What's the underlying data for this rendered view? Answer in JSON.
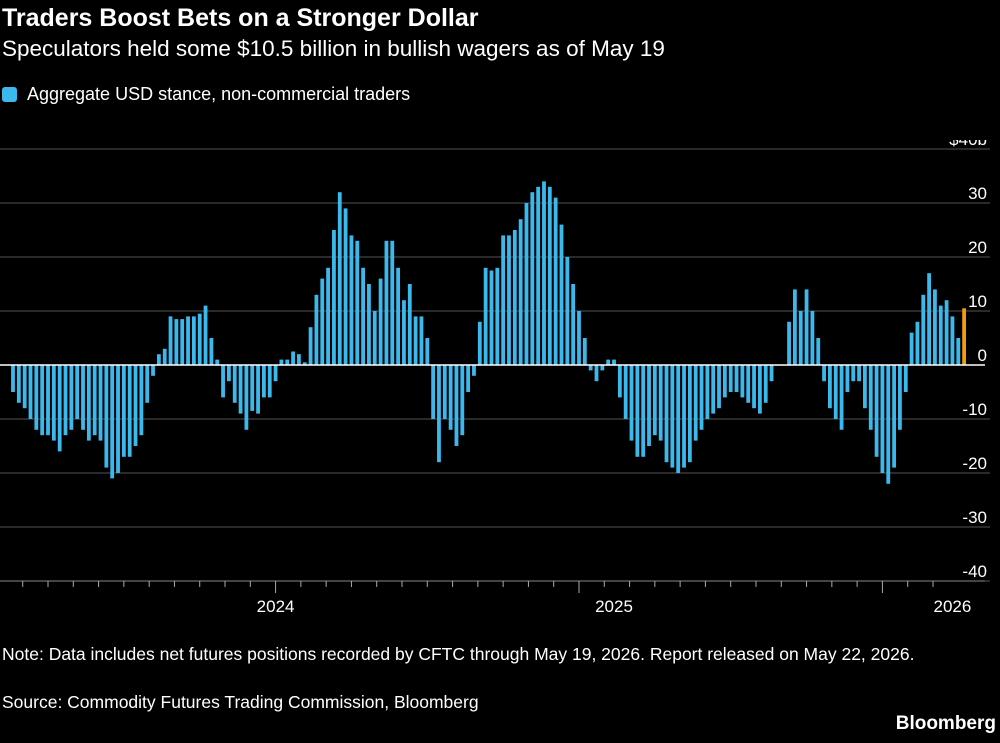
{
  "header": {
    "title": "Traders Boost Bets on a Stronger Dollar",
    "subtitle": "Speculators held some $10.5 billion in bullish wagers as of May 19"
  },
  "legend": {
    "label": "Aggregate USD stance, non-commercial traders",
    "color": "#3bb8ec"
  },
  "footer": {
    "note": "Note: Data includes net futures positions recorded by CFTC through May 19, 2026. Report released on May 22, 2026.",
    "source": "Source: Commodity Futures Trading Commission, Bloomberg",
    "brand": "Bloomberg"
  },
  "colors": {
    "bar": "#3bb8ec",
    "highlight": "#f39c12",
    "grid": "#555555",
    "zero_line": "#ffffff"
  },
  "chart_data": {
    "type": "bar",
    "series_name": "Aggregate USD stance, non-commercial traders",
    "unit": "$ billion",
    "ylim": [
      -40,
      40
    ],
    "yticks": [
      {
        "value": 40,
        "label": "$40b"
      },
      {
        "value": 30,
        "label": "30"
      },
      {
        "value": 20,
        "label": "20"
      },
      {
        "value": 10,
        "label": "10"
      },
      {
        "value": 0,
        "label": "0"
      },
      {
        "value": -10,
        "label": "-10"
      },
      {
        "value": -20,
        "label": "-20"
      },
      {
        "value": -30,
        "label": "-30"
      },
      {
        "value": -40,
        "label": "-40"
      }
    ],
    "xticks": [
      {
        "label": "2024",
        "index": 45
      },
      {
        "label": "2025",
        "index": 103
      },
      {
        "label": "2026",
        "index": 161
      }
    ],
    "x_start": "2023-06-06",
    "x_end": "2026-05-19",
    "frequency": "weekly",
    "highlight_last": true,
    "grid": true,
    "values": [
      -5,
      -7,
      -8,
      -10,
      -12,
      -13,
      -13,
      -14,
      -16,
      -13,
      -12,
      -10,
      -12,
      -14,
      -13,
      -14,
      -19,
      -21,
      -20,
      -17,
      -17,
      -15,
      -13,
      -7,
      -2,
      2,
      3,
      9,
      8.5,
      8.5,
      9,
      9,
      9.5,
      11,
      5,
      1,
      -6,
      -3,
      -7,
      -9,
      -12,
      -8.5,
      -9,
      -6,
      -6,
      -3,
      1,
      1,
      2.5,
      2,
      0.5,
      7,
      13,
      16,
      18,
      25,
      32,
      29,
      24,
      23,
      18,
      15,
      10,
      16,
      23,
      23,
      18,
      12,
      15,
      9,
      9,
      5,
      -10,
      -18,
      -10,
      -12,
      -15,
      -13,
      -5,
      -2,
      8,
      18,
      17.5,
      18,
      24,
      24,
      25,
      27,
      30,
      32,
      33,
      34,
      33,
      31,
      26,
      20,
      15,
      10,
      5,
      -1,
      -3,
      -1,
      1,
      1,
      -6,
      -10,
      -14,
      -17,
      -17,
      -15,
      -13,
      -14,
      -18,
      -19,
      -20,
      -19,
      -18,
      -14,
      -12,
      -10,
      -9,
      -8,
      -6,
      -5,
      -5,
      -6,
      -7,
      -8,
      -9,
      -7,
      -3,
      0,
      0,
      8,
      14,
      10,
      14,
      10,
      5,
      -3,
      -8,
      -10,
      -12,
      -5,
      -3,
      -3,
      -8,
      -12,
      -17,
      -20,
      -22,
      -19,
      -12,
      -5,
      6,
      8,
      13,
      17,
      14,
      11,
      12,
      9,
      5,
      10.5
    ]
  }
}
